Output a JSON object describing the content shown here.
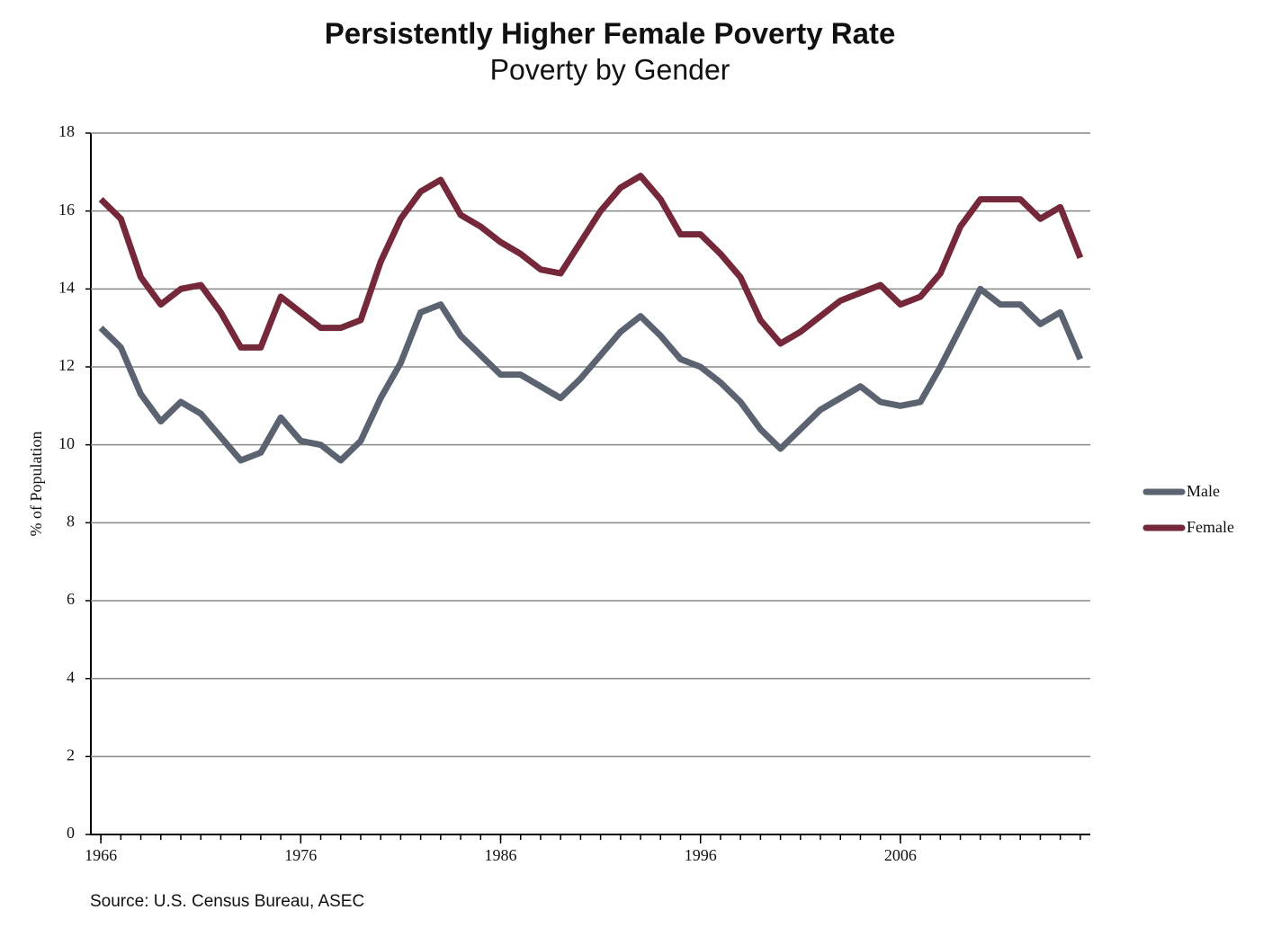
{
  "chart_data": {
    "type": "line",
    "title": "Persistently Higher Female Poverty Rate",
    "subtitle": "Poverty by Gender",
    "y_label": "% of Population",
    "source": "Source: U.S. Census Bureau, ASEC",
    "x": [
      1966,
      1967,
      1968,
      1969,
      1970,
      1971,
      1972,
      1973,
      1974,
      1975,
      1976,
      1977,
      1978,
      1979,
      1980,
      1981,
      1982,
      1983,
      1984,
      1985,
      1986,
      1987,
      1988,
      1989,
      1990,
      1991,
      1992,
      1993,
      1994,
      1995,
      1996,
      1997,
      1998,
      1999,
      2000,
      2001,
      2002,
      2003,
      2004,
      2005,
      2006,
      2007,
      2008,
      2009,
      2010,
      2011,
      2012,
      2013,
      2014,
      2015
    ],
    "series": [
      {
        "name": "Male",
        "color": "#5b6370",
        "values": [
          13.0,
          12.5,
          11.3,
          10.6,
          11.1,
          10.8,
          10.2,
          9.6,
          9.8,
          10.7,
          10.1,
          10.0,
          9.6,
          10.1,
          11.2,
          12.1,
          13.4,
          13.6,
          12.8,
          12.3,
          11.8,
          11.8,
          11.5,
          11.2,
          11.7,
          12.3,
          12.9,
          13.3,
          12.8,
          12.2,
          12.0,
          11.6,
          11.1,
          10.4,
          9.9,
          10.4,
          10.9,
          11.2,
          11.5,
          11.1,
          11.0,
          11.1,
          12.0,
          13.0,
          14.0,
          13.6,
          13.6,
          13.1,
          13.4,
          12.2
        ]
      },
      {
        "name": "Female",
        "color": "#74283a",
        "values": [
          16.3,
          15.8,
          14.3,
          13.6,
          14.0,
          14.1,
          13.4,
          12.5,
          12.5,
          13.8,
          13.4,
          13.0,
          13.0,
          13.2,
          14.7,
          15.8,
          16.5,
          16.8,
          15.9,
          15.6,
          15.2,
          14.9,
          14.5,
          14.4,
          15.2,
          16.0,
          16.6,
          16.9,
          16.3,
          15.4,
          15.4,
          14.9,
          14.3,
          13.2,
          12.6,
          12.9,
          13.3,
          13.7,
          13.9,
          14.1,
          13.6,
          13.8,
          14.4,
          15.6,
          16.3,
          16.3,
          16.3,
          15.8,
          16.1,
          14.8
        ]
      }
    ],
    "xlim": [
      1965.5,
      2015.5
    ],
    "xticks": [
      1966,
      1976,
      1986,
      1996,
      2006
    ],
    "ylim": [
      0,
      18
    ],
    "yticks": [
      0,
      2,
      4,
      6,
      8,
      10,
      12,
      14,
      16,
      18
    ],
    "grid": true,
    "legend": "right"
  }
}
